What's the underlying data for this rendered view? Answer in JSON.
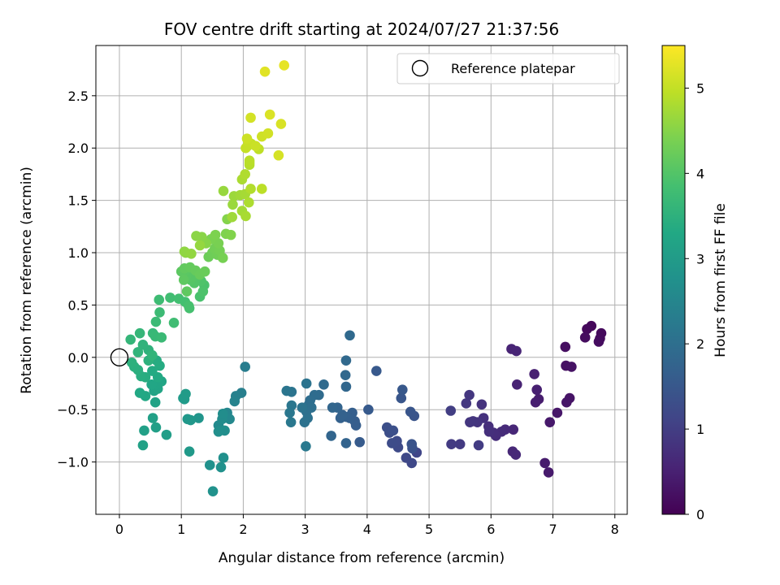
{
  "chart_data": {
    "type": "scatter",
    "title": "FOV centre drift starting at 2024/07/27 21:37:56",
    "xlabel": "Angular distance from reference (arcmin)",
    "ylabel": "Rotation from reference (arcmin)",
    "xlim": [
      -0.38,
      8.2
    ],
    "ylim": [
      -1.5,
      2.98
    ],
    "xticks": [
      "0",
      "1",
      "2",
      "3",
      "4",
      "5",
      "6",
      "7",
      "8"
    ],
    "yticks": [
      "−1.0",
      "−0.5",
      "0.0",
      "0.5",
      "1.0",
      "1.5",
      "2.0",
      "2.5"
    ],
    "grid": true,
    "legend": {
      "position": "top-right",
      "label": "Reference platepar"
    },
    "reference_point": {
      "x": 0,
      "y": 0
    },
    "colorbar": {
      "label": "Hours from first FF file",
      "range": [
        0,
        5.5
      ],
      "ticks": [
        "0",
        "1",
        "2",
        "3",
        "4",
        "5"
      ],
      "colormap": "viridis"
    },
    "points": [
      [
        7.62,
        0.3,
        0.1
      ],
      [
        7.55,
        0.27,
        0.12
      ],
      [
        7.78,
        0.23,
        0.14
      ],
      [
        7.76,
        0.18,
        0.15
      ],
      [
        7.52,
        0.19,
        0.17
      ],
      [
        7.74,
        0.15,
        0.18
      ],
      [
        7.2,
        0.1,
        0.22
      ],
      [
        7.21,
        -0.08,
        0.25
      ],
      [
        7.3,
        -0.09,
        0.27
      ],
      [
        7.27,
        -0.39,
        0.3
      ],
      [
        7.22,
        -0.43,
        0.32
      ],
      [
        7.07,
        -0.53,
        0.35
      ],
      [
        6.95,
        -0.62,
        0.38
      ],
      [
        6.93,
        -1.1,
        0.4
      ],
      [
        6.87,
        -1.01,
        0.42
      ],
      [
        6.77,
        -0.4,
        0.44
      ],
      [
        6.72,
        -0.43,
        0.46
      ],
      [
        6.74,
        -0.31,
        0.48
      ],
      [
        6.7,
        -0.16,
        0.5
      ],
      [
        6.42,
        -0.26,
        0.53
      ],
      [
        6.33,
        0.08,
        0.55
      ],
      [
        6.41,
        0.06,
        0.57
      ],
      [
        6.36,
        -0.69,
        0.6
      ],
      [
        6.35,
        -0.9,
        0.62
      ],
      [
        6.4,
        -0.93,
        0.64
      ],
      [
        6.23,
        -0.69,
        0.66
      ],
      [
        6.17,
        -0.71,
        0.68
      ],
      [
        6.08,
        -0.75,
        0.7
      ],
      [
        6.04,
        -0.72,
        0.72
      ],
      [
        5.96,
        -0.66,
        0.74
      ],
      [
        5.97,
        -0.71,
        0.76
      ],
      [
        5.88,
        -0.58,
        0.78
      ],
      [
        5.85,
        -0.45,
        0.8
      ],
      [
        5.78,
        -0.62,
        0.82
      ],
      [
        5.71,
        -0.61,
        0.84
      ],
      [
        5.66,
        -0.62,
        0.86
      ],
      [
        5.65,
        -0.36,
        0.88
      ],
      [
        5.6,
        -0.44,
        0.9
      ],
      [
        5.5,
        -0.83,
        0.93
      ],
      [
        5.36,
        -0.83,
        0.95
      ],
      [
        5.8,
        -0.84,
        0.97
      ],
      [
        5.35,
        -0.51,
        0.99
      ],
      [
        4.8,
        -0.91,
        1.15
      ],
      [
        4.72,
        -1.01,
        1.18
      ],
      [
        4.63,
        -0.96,
        1.2
      ],
      [
        4.5,
        -0.86,
        1.22
      ],
      [
        4.48,
        -0.8,
        1.25
      ],
      [
        4.4,
        -0.82,
        1.27
      ],
      [
        4.36,
        -0.72,
        1.3
      ],
      [
        4.32,
        -0.67,
        1.32
      ],
      [
        4.42,
        -0.7,
        1.35
      ],
      [
        4.73,
        -0.87,
        1.37
      ],
      [
        4.72,
        -0.83,
        1.4
      ],
      [
        4.76,
        -0.56,
        1.42
      ],
      [
        4.7,
        -0.52,
        1.45
      ],
      [
        4.55,
        -0.39,
        1.47
      ],
      [
        4.57,
        -0.31,
        1.5
      ],
      [
        4.15,
        -0.13,
        1.52
      ],
      [
        4.02,
        -0.5,
        1.55
      ],
      [
        3.88,
        -0.81,
        1.57
      ],
      [
        3.8,
        -0.61,
        1.6
      ],
      [
        3.82,
        -0.65,
        1.62
      ],
      [
        3.76,
        -0.53,
        1.64
      ],
      [
        3.72,
        -0.58,
        1.66
      ],
      [
        3.67,
        -0.57,
        1.68
      ],
      [
        3.57,
        -0.58,
        1.7
      ],
      [
        3.6,
        -0.55,
        1.72
      ],
      [
        3.66,
        -0.82,
        1.74
      ],
      [
        3.52,
        -0.48,
        1.76
      ],
      [
        3.42,
        -0.75,
        1.78
      ],
      [
        3.44,
        -0.48,
        1.8
      ],
      [
        3.66,
        -0.28,
        1.82
      ],
      [
        3.65,
        -0.17,
        1.84
      ],
      [
        3.66,
        -0.03,
        1.86
      ],
      [
        3.72,
        0.21,
        1.88
      ],
      [
        3.3,
        -0.26,
        1.9
      ],
      [
        3.22,
        -0.36,
        1.92
      ],
      [
        3.15,
        -0.36,
        1.94
      ],
      [
        3.08,
        -0.41,
        1.96
      ],
      [
        3.06,
        -0.45,
        1.98
      ],
      [
        3.1,
        -0.48,
        2.0
      ],
      [
        3.02,
        -0.52,
        2.02
      ],
      [
        3.04,
        -0.58,
        2.04
      ],
      [
        2.99,
        -0.62,
        2.06
      ],
      [
        2.95,
        -0.48,
        2.08
      ],
      [
        3.02,
        -0.25,
        2.1
      ],
      [
        2.78,
        -0.33,
        2.12
      ],
      [
        2.7,
        -0.32,
        2.14
      ],
      [
        2.78,
        -0.46,
        2.16
      ],
      [
        2.75,
        -0.53,
        2.18
      ],
      [
        2.77,
        -0.62,
        2.2
      ],
      [
        3.01,
        -0.85,
        2.22
      ],
      [
        2.03,
        -0.09,
        2.3
      ],
      [
        1.97,
        -0.34,
        2.35
      ],
      [
        1.88,
        -0.37,
        2.4
      ],
      [
        1.86,
        -0.42,
        2.45
      ],
      [
        1.74,
        -0.53,
        2.5
      ],
      [
        1.78,
        -0.59,
        2.55
      ],
      [
        1.6,
        -0.65,
        2.6
      ],
      [
        1.63,
        -0.69,
        2.62
      ],
      [
        1.66,
        -0.59,
        2.64
      ],
      [
        1.67,
        -0.54,
        2.66
      ],
      [
        1.7,
        -0.7,
        2.68
      ],
      [
        1.6,
        -0.71,
        2.7
      ],
      [
        1.68,
        -0.96,
        2.72
      ],
      [
        1.64,
        -1.05,
        2.74
      ],
      [
        1.46,
        -1.03,
        2.76
      ],
      [
        1.51,
        -1.28,
        2.78
      ],
      [
        1.28,
        -0.58,
        2.85
      ],
      [
        1.15,
        -0.6,
        2.9
      ],
      [
        1.1,
        -0.59,
        2.92
      ],
      [
        1.13,
        -0.9,
        2.94
      ],
      [
        1.05,
        -0.4,
        2.96
      ],
      [
        1.03,
        -0.39,
        2.98
      ],
      [
        1.07,
        -0.35,
        3.0
      ],
      [
        0.76,
        -0.74,
        3.05
      ],
      [
        0.59,
        -0.67,
        3.08
      ],
      [
        0.54,
        -0.58,
        3.1
      ],
      [
        0.4,
        -0.7,
        3.12
      ],
      [
        0.38,
        -0.84,
        3.14
      ],
      [
        0.58,
        -0.43,
        3.16
      ],
      [
        0.56,
        -0.32,
        3.18
      ],
      [
        0.62,
        -0.3,
        3.2
      ],
      [
        0.59,
        -0.26,
        3.22
      ],
      [
        0.68,
        -0.23,
        3.24
      ],
      [
        0.52,
        -0.26,
        3.26
      ],
      [
        0.42,
        -0.37,
        3.28
      ],
      [
        0.33,
        -0.34,
        3.3
      ],
      [
        0.62,
        -0.19,
        3.32
      ],
      [
        0.53,
        -0.13,
        3.34
      ],
      [
        0.65,
        -0.08,
        3.36
      ],
      [
        0.6,
        -0.03,
        3.38
      ],
      [
        0.42,
        -0.19,
        3.4
      ],
      [
        0.35,
        -0.18,
        3.42
      ],
      [
        0.3,
        -0.12,
        3.44
      ],
      [
        0.24,
        -0.09,
        3.46
      ],
      [
        0.2,
        -0.05,
        3.48
      ],
      [
        0.47,
        -0.03,
        3.5
      ],
      [
        0.47,
        0.07,
        3.52
      ],
      [
        0.38,
        0.12,
        3.54
      ],
      [
        0.3,
        0.05,
        3.56
      ],
      [
        0.53,
        0.02,
        3.58
      ],
      [
        0.18,
        0.17,
        3.6
      ],
      [
        0.33,
        0.23,
        3.62
      ],
      [
        0.54,
        0.23,
        3.66
      ],
      [
        0.58,
        0.2,
        3.68
      ],
      [
        0.68,
        0.19,
        3.7
      ],
      [
        0.59,
        0.34,
        3.72
      ],
      [
        0.65,
        0.43,
        3.74
      ],
      [
        0.64,
        0.55,
        3.76
      ],
      [
        0.88,
        0.33,
        3.78
      ],
      [
        0.82,
        0.57,
        3.8
      ],
      [
        0.96,
        0.56,
        3.82
      ],
      [
        1.06,
        0.53,
        3.84
      ],
      [
        1.13,
        0.47,
        3.86
      ],
      [
        1.12,
        0.49,
        3.88
      ],
      [
        1.3,
        0.58,
        3.9
      ],
      [
        1.37,
        0.69,
        3.92
      ],
      [
        1.35,
        0.63,
        3.94
      ],
      [
        1.32,
        0.73,
        3.96
      ],
      [
        1.26,
        0.76,
        3.98
      ],
      [
        1.21,
        0.71,
        4.0
      ],
      [
        1.15,
        0.74,
        4.02
      ],
      [
        1.18,
        0.77,
        4.04
      ],
      [
        1.08,
        0.78,
        4.06
      ],
      [
        1.06,
        0.83,
        4.08
      ],
      [
        1.0,
        0.82,
        4.1
      ],
      [
        1.04,
        0.74,
        4.12
      ],
      [
        1.09,
        0.63,
        4.14
      ],
      [
        1.05,
        0.85,
        4.16
      ],
      [
        1.14,
        0.86,
        4.18
      ],
      [
        1.23,
        0.83,
        4.2
      ],
      [
        1.3,
        0.79,
        4.22
      ],
      [
        1.38,
        0.82,
        4.24
      ],
      [
        1.44,
        0.96,
        4.26
      ],
      [
        1.5,
        1.0,
        4.28
      ],
      [
        1.58,
        0.98,
        4.3
      ],
      [
        1.54,
        1.04,
        4.32
      ],
      [
        1.62,
        1.02,
        4.34
      ],
      [
        1.67,
        0.95,
        4.36
      ],
      [
        1.6,
        1.09,
        4.38
      ],
      [
        1.48,
        1.13,
        4.4
      ],
      [
        1.55,
        1.17,
        4.42
      ],
      [
        1.72,
        1.18,
        4.44
      ],
      [
        1.8,
        1.17,
        4.46
      ],
      [
        1.74,
        1.32,
        4.48
      ],
      [
        1.4,
        1.09,
        4.5
      ],
      [
        1.33,
        1.15,
        4.52
      ],
      [
        1.24,
        1.16,
        4.54
      ],
      [
        1.07,
        1.0,
        4.56
      ],
      [
        1.05,
        1.01,
        4.58
      ],
      [
        1.16,
        0.99,
        4.6
      ],
      [
        1.3,
        1.07,
        4.62
      ],
      [
        1.68,
        1.59,
        4.64
      ],
      [
        1.83,
        1.46,
        4.66
      ],
      [
        1.85,
        1.54,
        4.68
      ],
      [
        1.82,
        1.34,
        4.7
      ],
      [
        1.95,
        1.55,
        4.72
      ],
      [
        1.98,
        1.4,
        4.74
      ],
      [
        2.03,
        1.56,
        4.76
      ],
      [
        2.04,
        1.35,
        4.78
      ],
      [
        1.98,
        1.7,
        4.8
      ],
      [
        2.09,
        1.48,
        4.82
      ],
      [
        2.03,
        1.75,
        4.84
      ],
      [
        2.12,
        1.61,
        4.86
      ],
      [
        2.1,
        1.84,
        4.88
      ],
      [
        2.1,
        1.86,
        4.9
      ],
      [
        2.1,
        1.88,
        4.92
      ],
      [
        2.3,
        1.61,
        4.94
      ],
      [
        2.25,
        1.99,
        4.96
      ],
      [
        2.07,
        2.02,
        4.98
      ],
      [
        2.13,
        2.04,
        5.0
      ],
      [
        2.04,
        2.0,
        5.02
      ],
      [
        2.08,
        2.06,
        5.04
      ],
      [
        2.2,
        2.02,
        5.06
      ],
      [
        2.06,
        2.09,
        5.08
      ],
      [
        2.3,
        2.11,
        5.1
      ],
      [
        2.4,
        2.14,
        5.12
      ],
      [
        2.12,
        2.29,
        5.14
      ],
      [
        2.57,
        1.93,
        5.16
      ],
      [
        2.61,
        2.23,
        5.18
      ],
      [
        2.43,
        2.32,
        5.2
      ],
      [
        2.35,
        2.73,
        5.25
      ],
      [
        2.66,
        2.79,
        5.3
      ]
    ]
  }
}
